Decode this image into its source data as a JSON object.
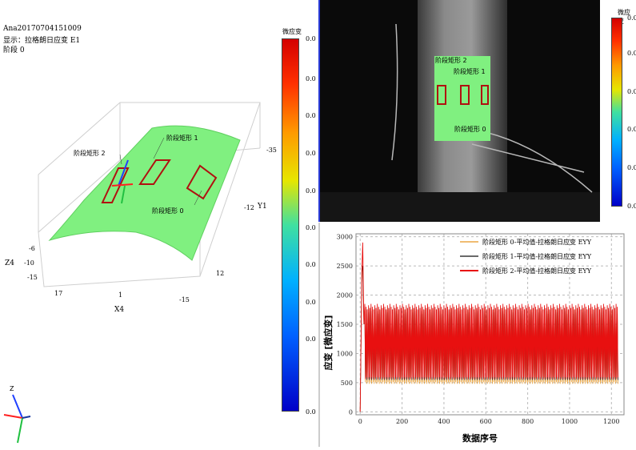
{
  "header": {
    "analysis_name": "Ana20170704151009",
    "display_label": "显示：拉格朗日应变 E1",
    "stage_label": "阶段 0"
  },
  "left_colorbar": {
    "title": "微应变",
    "labels": [
      "0.0",
      "0.0",
      "0.0",
      "0.0",
      "0.0",
      "0.0",
      "0.0",
      "0.0",
      "0.0",
      "0.0"
    ]
  },
  "view3d": {
    "rect_labels": [
      "阶段矩形 2",
      "阶段矩形 1",
      "阶段矩形 0"
    ],
    "axes": {
      "y_name": "Y1",
      "y_ticks": [
        "-35",
        "-12",
        "12"
      ],
      "z_name": "Z4",
      "z_ticks": [
        "-6",
        "-10",
        "-15"
      ],
      "x_name": "X4",
      "x_ticks": [
        "17",
        "1",
        "-15"
      ]
    },
    "triad_z_label": "Z",
    "colors": {
      "surface": "#80f080",
      "rect": "#b01010"
    }
  },
  "photo": {
    "rect_labels": [
      "阶段矩形 2",
      "阶段矩形 1",
      "阶段矩形 0"
    ],
    "colors": {
      "overlay": "#80f080"
    }
  },
  "right_colorbar": {
    "title": "微应变",
    "labels": [
      "0.0",
      "0.0",
      "0.0",
      "0.0",
      "0.0",
      "0.0"
    ]
  },
  "chart_data": {
    "type": "line",
    "xlabel": "数据序号",
    "ylabel": "应变 [微应变]",
    "xlim": [
      -20,
      1260
    ],
    "ylim": [
      -50,
      3050
    ],
    "x_ticks": [
      0,
      200,
      400,
      600,
      800,
      1000,
      1200
    ],
    "y_ticks": [
      0,
      500,
      1000,
      1500,
      2000,
      2500,
      3000
    ],
    "grid": true,
    "legend_position": "top-right",
    "series": [
      {
        "name": "阶段矩形 0-平均值-拉格朗日应变 EYY",
        "color": "#e8941e",
        "base": 480,
        "peak": 1800
      },
      {
        "name": "阶段矩形 1-平均值-拉格朗日应变 EYY",
        "color": "#111111",
        "base": 530,
        "peak": 1780
      },
      {
        "name": "阶段矩形 2-平均值-拉格朗日应变 EYY",
        "color": "#e81010",
        "base": 560,
        "peak": 1850
      }
    ],
    "spike": {
      "x": 12,
      "y": 2900
    }
  }
}
